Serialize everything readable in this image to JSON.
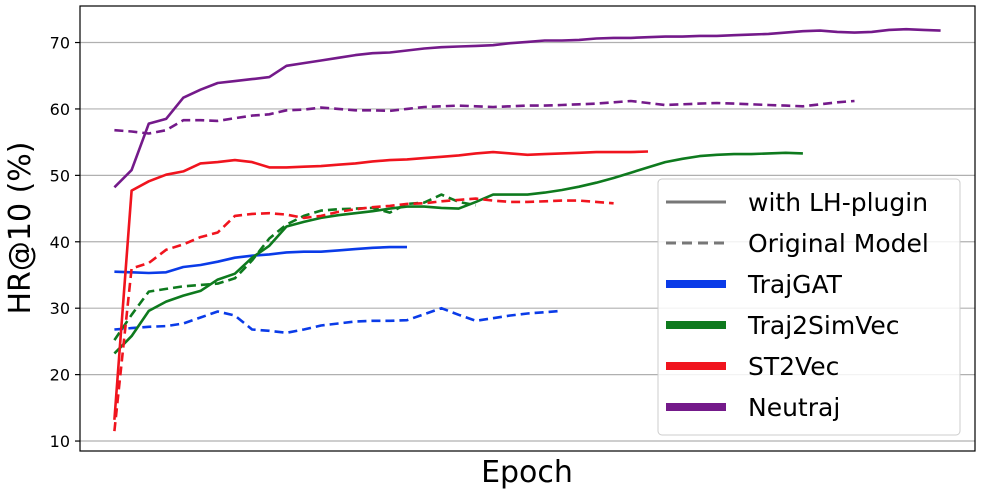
{
  "chart_data": {
    "type": "line",
    "xlabel": "Epoch",
    "ylabel": "HR@10 (%)",
    "ylim": [
      8.5,
      75.5
    ],
    "xlim": [
      -2,
      50
    ],
    "yticks": [
      10,
      20,
      30,
      40,
      50,
      60,
      70
    ],
    "grid": "horizontal",
    "legend_position": "lower-right",
    "legend": {
      "styles": [
        {
          "label": "with LH-plugin",
          "dash": "solid",
          "color": "#777777"
        },
        {
          "label": "Original Model",
          "dash": "dashed",
          "color": "#777777"
        }
      ],
      "models": [
        {
          "label": "TrajGAT",
          "color": "#0a3be8"
        },
        {
          "label": "Traj2SimVec",
          "color": "#0e7a1e"
        },
        {
          "label": "ST2Vec",
          "color": "#f0141e"
        },
        {
          "label": "Neutraj",
          "color": "#741a8a"
        }
      ]
    },
    "series": [
      {
        "name": "TrajGAT",
        "style": "with LH-plugin",
        "color": "#0a3be8",
        "dash": "solid",
        "x": [
          0,
          1,
          2,
          3,
          4,
          5,
          6,
          7,
          8,
          9,
          10,
          11,
          12,
          13,
          14,
          15,
          16,
          17
        ],
        "y": [
          35.5,
          35.4,
          35.3,
          35.4,
          36.2,
          36.5,
          37.0,
          37.6,
          37.9,
          38.1,
          38.4,
          38.5,
          38.5,
          38.7,
          38.9,
          39.1,
          39.2,
          39.2
        ]
      },
      {
        "name": "TrajGAT",
        "style": "Original Model",
        "color": "#0a3be8",
        "dash": "dashed",
        "x": [
          0,
          1,
          2,
          3,
          4,
          5,
          6,
          7,
          8,
          9,
          10,
          11,
          12,
          13,
          14,
          15,
          16,
          17,
          18,
          19,
          20,
          21,
          22,
          23,
          24,
          25,
          26
        ],
        "y": [
          26.8,
          27.0,
          27.2,
          27.3,
          27.7,
          28.6,
          29.5,
          28.9,
          26.8,
          26.6,
          26.3,
          26.8,
          27.4,
          27.7,
          28.0,
          28.1,
          28.1,
          28.2,
          29.1,
          30.0,
          29.0,
          28.1,
          28.5,
          28.9,
          29.2,
          29.4,
          29.6
        ]
      },
      {
        "name": "Traj2SimVec",
        "style": "with LH-plugin",
        "color": "#0e7a1e",
        "dash": "solid",
        "x": [
          0,
          1,
          2,
          3,
          4,
          5,
          6,
          7,
          8,
          9,
          10,
          11,
          12,
          13,
          14,
          15,
          16,
          17,
          18,
          19,
          20,
          21,
          22,
          23,
          24,
          25,
          26,
          27,
          28,
          29,
          30,
          31,
          32,
          33,
          34,
          35,
          36,
          37,
          38,
          39,
          40
        ],
        "y": [
          23.2,
          25.8,
          29.6,
          31.0,
          31.9,
          32.6,
          34.3,
          35.2,
          37.6,
          39.4,
          42.3,
          43.0,
          43.6,
          44.0,
          44.3,
          44.6,
          45.0,
          45.3,
          45.3,
          45.1,
          45.0,
          46.0,
          47.1,
          47.1,
          47.1,
          47.4,
          47.8,
          48.3,
          48.9,
          49.6,
          50.4,
          51.2,
          52.0,
          52.5,
          52.9,
          53.1,
          53.2,
          53.2,
          53.3,
          53.4,
          53.3
        ]
      },
      {
        "name": "Traj2SimVec",
        "style": "Original Model",
        "color": "#0e7a1e",
        "dash": "dashed",
        "x": [
          0,
          1,
          2,
          3,
          4,
          5,
          6,
          7,
          8,
          9,
          10,
          11,
          12,
          13,
          14,
          15,
          16,
          17,
          18,
          19,
          20,
          21
        ],
        "y": [
          25.2,
          29.0,
          32.5,
          32.9,
          33.3,
          33.5,
          33.7,
          34.5,
          37.2,
          40.5,
          42.6,
          43.9,
          44.7,
          44.9,
          45.0,
          45.1,
          44.4,
          45.7,
          45.9,
          47.1,
          46.0,
          45.5
        ]
      },
      {
        "name": "ST2Vec",
        "style": "with LH-plugin",
        "color": "#f0141e",
        "dash": "solid",
        "x": [
          0,
          1,
          2,
          3,
          4,
          5,
          6,
          7,
          8,
          9,
          10,
          11,
          12,
          13,
          14,
          15,
          16,
          17,
          18,
          19,
          20,
          21,
          22,
          23,
          24,
          25,
          26,
          27,
          28,
          29,
          30,
          31
        ],
        "y": [
          13.2,
          47.7,
          49.1,
          50.1,
          50.6,
          51.8,
          52.0,
          52.3,
          52.0,
          51.2,
          51.2,
          51.3,
          51.4,
          51.6,
          51.8,
          52.1,
          52.3,
          52.4,
          52.6,
          52.8,
          53.0,
          53.3,
          53.5,
          53.3,
          53.1,
          53.2,
          53.3,
          53.4,
          53.5,
          53.5,
          53.5,
          53.6
        ]
      },
      {
        "name": "ST2Vec",
        "style": "Original Model",
        "color": "#f0141e",
        "dash": "dashed",
        "x": [
          0,
          1,
          2,
          3,
          4,
          5,
          6,
          7,
          8,
          9,
          10,
          11,
          12,
          13,
          14,
          15,
          16,
          17,
          18,
          19,
          20,
          21,
          22,
          23,
          24,
          25,
          26,
          27,
          28,
          29
        ],
        "y": [
          11.5,
          36.0,
          36.8,
          38.8,
          39.6,
          40.7,
          41.4,
          43.9,
          44.2,
          44.3,
          44.1,
          43.6,
          43.9,
          44.5,
          44.9,
          45.2,
          45.4,
          45.7,
          45.8,
          46.1,
          46.3,
          46.5,
          46.2,
          46.0,
          46.0,
          46.1,
          46.2,
          46.2,
          46.0,
          45.8
        ]
      },
      {
        "name": "Neutraj",
        "style": "with LH-plugin",
        "color": "#741a8a",
        "dash": "solid",
        "x": [
          0,
          1,
          2,
          3,
          4,
          5,
          6,
          7,
          8,
          9,
          10,
          11,
          12,
          13,
          14,
          15,
          16,
          17,
          18,
          19,
          20,
          21,
          22,
          23,
          24,
          25,
          26,
          27,
          28,
          29,
          30,
          31,
          32,
          33,
          34,
          35,
          36,
          37,
          38,
          39,
          40,
          41,
          42,
          43,
          44,
          45,
          46,
          47,
          48
        ],
        "y": [
          48.2,
          50.8,
          57.8,
          58.5,
          61.7,
          62.9,
          63.9,
          64.2,
          64.5,
          64.8,
          66.5,
          66.9,
          67.3,
          67.7,
          68.1,
          68.4,
          68.5,
          68.8,
          69.1,
          69.3,
          69.4,
          69.5,
          69.6,
          69.9,
          70.1,
          70.3,
          70.3,
          70.4,
          70.6,
          70.7,
          70.7,
          70.8,
          70.9,
          70.9,
          71.0,
          71.0,
          71.1,
          71.2,
          71.3,
          71.5,
          71.7,
          71.8,
          71.6,
          71.5,
          71.6,
          71.9,
          72.0,
          71.9,
          71.8
        ]
      },
      {
        "name": "Neutraj",
        "style": "Original Model",
        "color": "#741a8a",
        "dash": "dashed",
        "x": [
          0,
          1,
          2,
          3,
          4,
          5,
          6,
          7,
          8,
          9,
          10,
          11,
          12,
          13,
          14,
          15,
          16,
          17,
          18,
          19,
          20,
          21,
          22,
          23,
          24,
          25,
          26,
          27,
          28,
          29,
          30,
          31,
          32,
          33,
          34,
          35,
          36,
          37,
          38,
          39,
          40,
          41,
          42,
          43
        ],
        "y": [
          56.8,
          56.6,
          56.3,
          56.8,
          58.3,
          58.3,
          58.2,
          58.6,
          59.0,
          59.2,
          59.8,
          59.9,
          60.2,
          60.0,
          59.8,
          59.8,
          59.7,
          60.0,
          60.3,
          60.4,
          60.5,
          60.4,
          60.3,
          60.4,
          60.5,
          60.5,
          60.6,
          60.7,
          60.8,
          61.0,
          61.2,
          60.9,
          60.6,
          60.7,
          60.8,
          60.9,
          60.8,
          60.7,
          60.6,
          60.5,
          60.4,
          60.7,
          61.0,
          61.2
        ]
      }
    ]
  }
}
